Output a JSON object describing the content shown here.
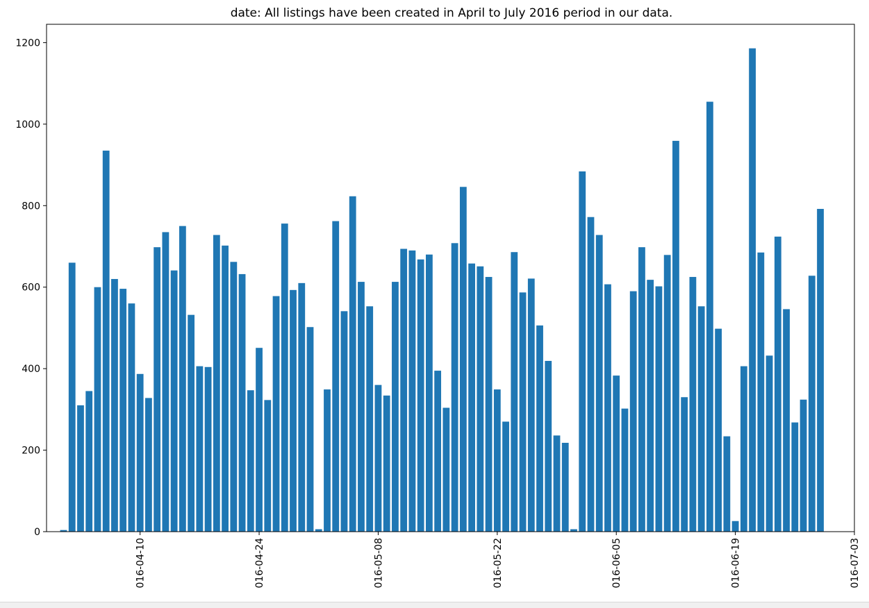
{
  "chart_data": {
    "type": "bar",
    "title": "date: All listings have been created in April to July 2016 period in our data.",
    "xlabel": "",
    "ylabel": "",
    "x_start": "2016-04-01",
    "x_end": "2016-07-03",
    "xlim": [
      "2016-03-30",
      "2016-07-03"
    ],
    "ylim": [
      0,
      1245
    ],
    "y_ticks": [
      0,
      200,
      400,
      600,
      800,
      1000,
      1200
    ],
    "x_ticks": [
      "2016-04-10",
      "2016-04-24",
      "2016-05-08",
      "2016-05-22",
      "2016-06-05",
      "2016-06-19",
      "2016-07-03"
    ],
    "x_tick_labels": [
      "016-04-10",
      "016-04-24",
      "016-05-08",
      "016-05-22",
      "016-06-05",
      "016-06-19",
      "016-07-03"
    ],
    "grid": false,
    "bar_color": "#1f77b4",
    "values": [
      4,
      660,
      310,
      345,
      600,
      935,
      620,
      596,
      560,
      387,
      328,
      698,
      735,
      641,
      750,
      532,
      406,
      404,
      728,
      702,
      662,
      632,
      347,
      451,
      323,
      578,
      756,
      593,
      610,
      502,
      6,
      349,
      762,
      541,
      823,
      613,
      553,
      360,
      334,
      613,
      694,
      690,
      668,
      680,
      395,
      304,
      708,
      846,
      658,
      651,
      625,
      349,
      270,
      686,
      587,
      621,
      506,
      419,
      236,
      218,
      6,
      884,
      772,
      728,
      607,
      383,
      302,
      590,
      698,
      618,
      602,
      679,
      959,
      330,
      625,
      553,
      1055,
      498,
      234,
      26,
      406,
      1186,
      685,
      432,
      724,
      546,
      268,
      324,
      628,
      792
    ]
  }
}
